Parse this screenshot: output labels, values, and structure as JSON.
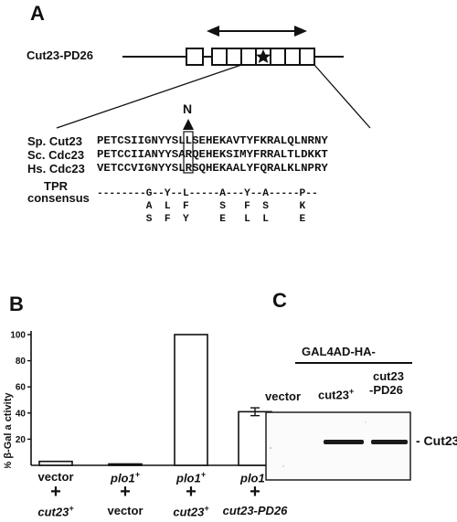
{
  "panel_a": {
    "letter": "A",
    "construct": "Cut23-PD26",
    "n_label": "N",
    "alignment": [
      {
        "species": "Sp. Cut23",
        "sequence": "PETCSIIGNYYSLLSEHEKAVTYFKRALQLNRNY"
      },
      {
        "species": "Sc. Cdc23",
        "sequence": "PETCCIIANYYSARQEHEKSIMYFRRALTLDKKT"
      },
      {
        "species": "Hs. Cdc23",
        "sequence": "VETCCVIGNYYSLRSQHEKAALYFQRALKLNPRY"
      }
    ],
    "tpr_label_line1": "TPR",
    "tpr_label_line2": "consensus",
    "tpr_rows": [
      "--------G--Y--L-----A---Y--A-----P--",
      "        A  L  F     S   F  S     K  ",
      "        S  F  Y     E   L  L     E  "
    ]
  },
  "panel_b": {
    "letter": "B",
    "ylabel": "% β-Gal  a ctivity",
    "conditions": [
      {
        "top": "vector",
        "top_sup": "",
        "bottom": "cut23",
        "bottom_sup": "+"
      },
      {
        "top": "plo1",
        "top_sup": "+",
        "bottom": "vector",
        "bottom_sup": ""
      },
      {
        "top": "plo1",
        "top_sup": "+",
        "bottom": "cut23",
        "bottom_sup": "+"
      },
      {
        "top": "plo1",
        "top_sup": "+",
        "bottom": "cut23-PD26",
        "bottom_sup": ""
      }
    ],
    "plus": "+"
  },
  "panel_c": {
    "letter": "C",
    "header": "GAL4AD-HA-",
    "lanes": [
      {
        "label": "vector",
        "sup": ""
      },
      {
        "label": "cut23",
        "sup": "+"
      },
      {
        "label": "cut23",
        "label2": "-PD26",
        "sup": ""
      }
    ],
    "band_label": "- Cut23"
  },
  "chart_data": {
    "type": "bar",
    "categories": [
      "vector + cut23+",
      "plo1+ + vector",
      "plo1+ + cut23+",
      "plo1+ + cut23-PD26"
    ],
    "values": [
      3,
      1,
      100,
      41
    ],
    "error": [
      0,
      0,
      0,
      3
    ],
    "ylabel": "% β-Gal  a ctivity",
    "yticks": [
      20,
      40,
      60,
      80,
      100
    ],
    "ylim": [
      0,
      105
    ]
  },
  "colors": {
    "ink": "#111111",
    "bar_fill": "#ffffff"
  }
}
